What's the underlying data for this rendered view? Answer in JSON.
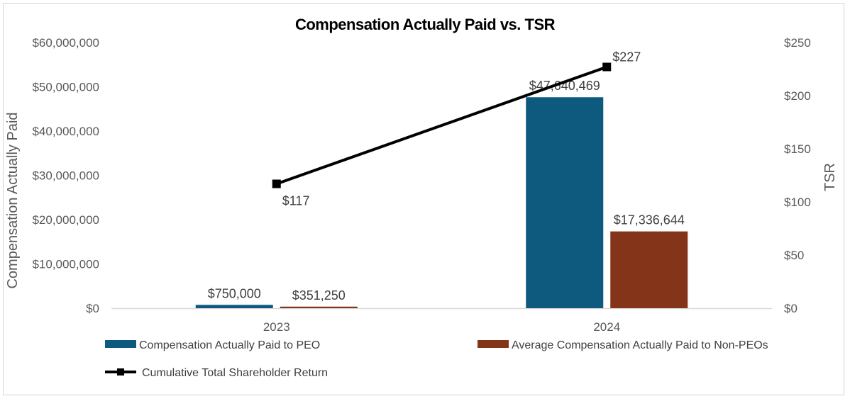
{
  "chart_data": {
    "type": "bar",
    "title": "Compensation Actually Paid vs. TSR",
    "categories": [
      "2023",
      "2024"
    ],
    "y_left": {
      "label": "Compensation Actually Paid",
      "lim": [
        0,
        60000000
      ],
      "ticks": [
        0,
        10000000,
        20000000,
        30000000,
        40000000,
        50000000,
        60000000
      ],
      "tick_labels": [
        "$0",
        "$10,000,000",
        "$20,000,000",
        "$30,000,000",
        "$40,000,000",
        "$50,000,000",
        "$60,000,000"
      ]
    },
    "y_right": {
      "label": "TSR",
      "lim": [
        0,
        250
      ],
      "ticks": [
        0,
        50,
        100,
        150,
        200,
        250
      ],
      "tick_labels": [
        "$0",
        "$50",
        "$100",
        "$150",
        "$200",
        "$250"
      ]
    },
    "series": [
      {
        "name": "Compensation Actually Paid to PEO",
        "type": "bar",
        "axis": "left",
        "color": "#0e5a7e",
        "values": [
          750000,
          47640469
        ],
        "labels": [
          "$750,000",
          "$47,640,469"
        ]
      },
      {
        "name": "Average Compensation Actually Paid to Non-PEOs",
        "type": "bar",
        "axis": "left",
        "color": "#843418",
        "values": [
          351250,
          17336644
        ],
        "labels": [
          "$351,250",
          "$17,336,644"
        ]
      },
      {
        "name": "Cumulative Total Shareholder Return",
        "type": "line",
        "axis": "right",
        "color": "#000000",
        "values": [
          117,
          227
        ],
        "labels": [
          "$117",
          "$227"
        ]
      }
    ],
    "grid": false,
    "legend_position": "bottom"
  }
}
